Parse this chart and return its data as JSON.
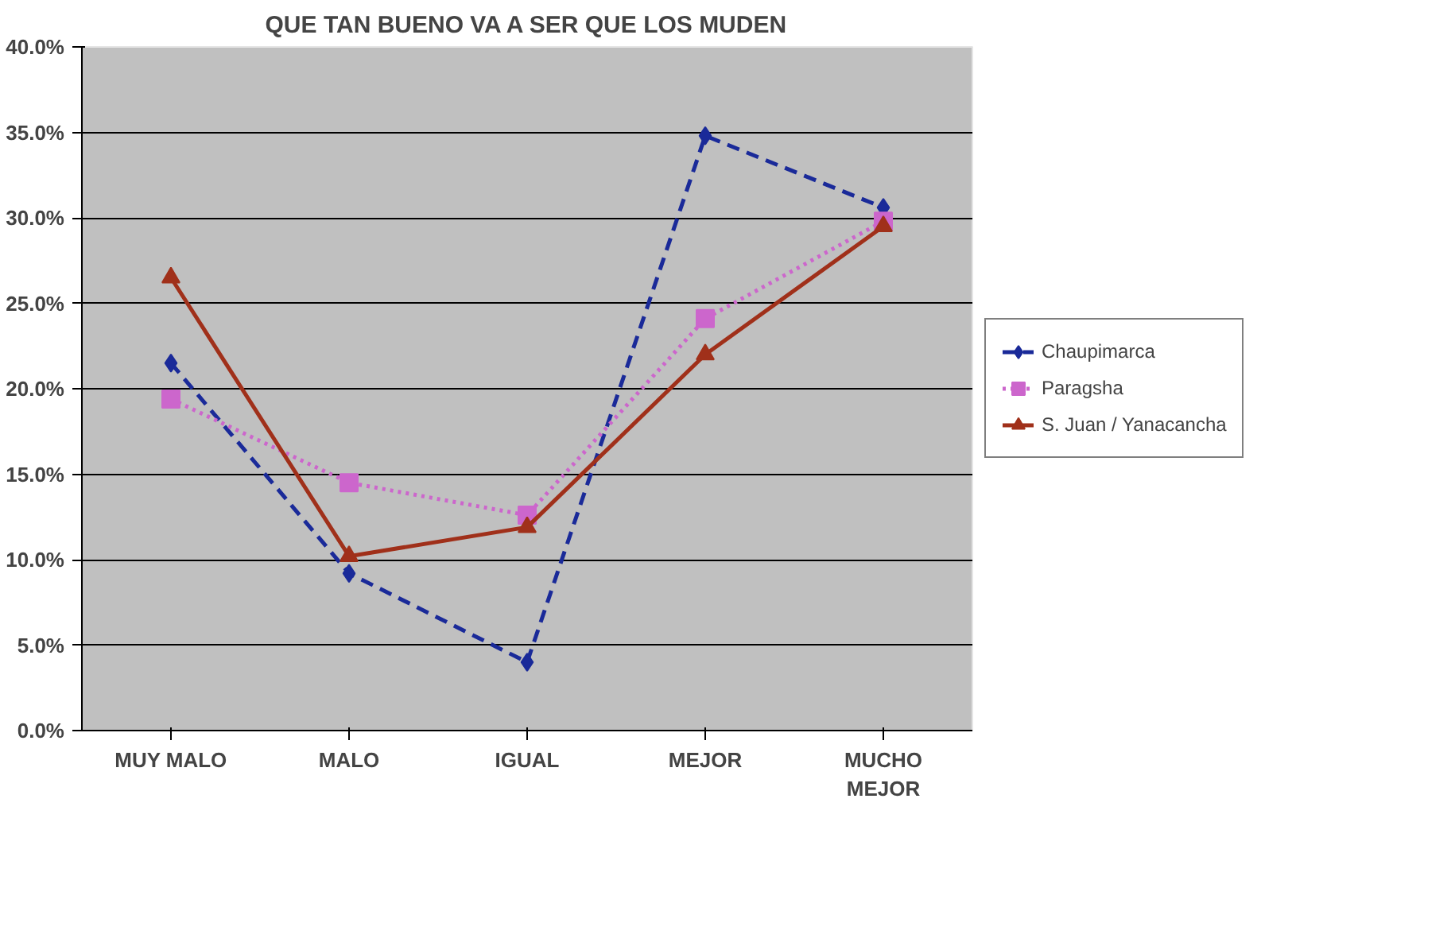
{
  "chart_data": {
    "type": "line",
    "title": "QUE TAN BUENO VA A SER QUE LOS MUDEN",
    "categories": [
      "MUY MALO",
      "MALO",
      "IGUAL",
      "MEJOR",
      "MUCHO\nMEJOR"
    ],
    "series": [
      {
        "name": "Chaupimarca",
        "color": "#1a2a99",
        "values": [
          21.5,
          9.2,
          4.0,
          34.8,
          30.6
        ],
        "marker": "diamond",
        "line_style": "dashed"
      },
      {
        "name": "Paragsha",
        "color": "#cc66cc",
        "values": [
          19.4,
          14.5,
          12.6,
          24.1,
          29.8
        ],
        "marker": "square",
        "line_style": "dotted"
      },
      {
        "name": "S. Juan / Yanacancha",
        "color": "#a0301a",
        "values": [
          26.5,
          10.2,
          11.9,
          22.0,
          29.5
        ],
        "marker": "triangle",
        "line_style": "solid"
      }
    ],
    "ylim": [
      0,
      40
    ],
    "yticks": [
      {
        "value": 0,
        "label": "0.0%"
      },
      {
        "value": 5,
        "label": "5.0%"
      },
      {
        "value": 10,
        "label": "10.0%"
      },
      {
        "value": 15,
        "label": "15.0%"
      },
      {
        "value": 20,
        "label": "20.0%"
      },
      {
        "value": 25,
        "label": "25.0%"
      },
      {
        "value": 30,
        "label": "30.0%"
      },
      {
        "value": 35,
        "label": "35.0%"
      },
      {
        "value": 40,
        "label": "40.0%"
      }
    ],
    "grid": "y",
    "legend": "right"
  }
}
